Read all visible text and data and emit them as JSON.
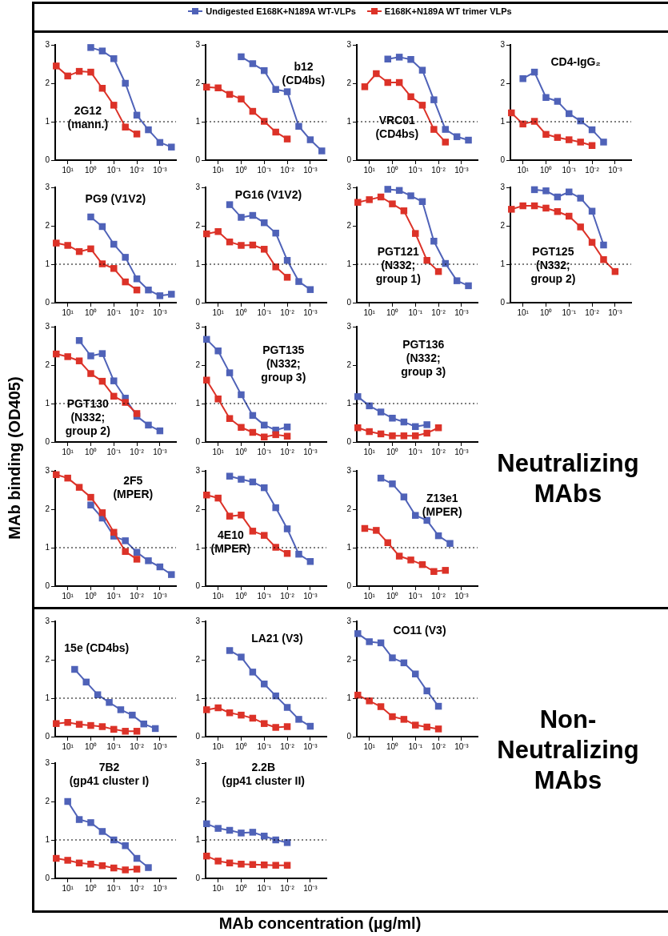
{
  "chart_data": [
    {
      "type": "line",
      "title": "2G12 (mann.)",
      "legend": "top",
      "log": "x",
      "marker": "square",
      "xlim": [
        35,
        0.0002
      ],
      "xticks": [
        {
          "value": 10,
          "label": "10¹"
        },
        {
          "value": 1,
          "label": "10⁰"
        },
        {
          "value": 0.1,
          "label": "10⁻¹"
        },
        {
          "value": 0.01,
          "label": "10⁻²"
        },
        {
          "value": 0.001,
          "label": "10⁻³"
        }
      ],
      "ylim": [
        0,
        3
      ],
      "yticks": [
        0,
        1,
        2,
        3
      ],
      "ref_lines": [
        {
          "axis": "y",
          "value": 1,
          "line_style": "dotted"
        }
      ],
      "series": [
        {
          "name": "Undigested E168K+N189A WT-VLPs",
          "color": "#4f62b8",
          "x": [
            1,
            0.316,
            0.1,
            0.0316,
            0.01,
            0.00316,
            0.001,
            0.000316
          ],
          "values": [
            2.93,
            2.84,
            2.64,
            2.0,
            1.17,
            0.79,
            0.46,
            0.34
          ]
        },
        {
          "name": "E168K+N189A WT trimer VLPs",
          "color": "#dc3228",
          "x": [
            31.6,
            10,
            3.16,
            1,
            0.316,
            0.1,
            0.0316,
            0.01
          ],
          "values": [
            2.45,
            2.19,
            2.31,
            2.29,
            1.87,
            1.43,
            0.86,
            0.68
          ]
        }
      ]
    },
    {
      "type": "line",
      "title": "b12 (CD4bs)",
      "log": "x",
      "marker": "square",
      "xlim": [
        35,
        0.0002
      ],
      "xticks": [
        {
          "value": 10,
          "label": "10¹"
        },
        {
          "value": 1,
          "label": "10⁰"
        },
        {
          "value": 0.1,
          "label": "10⁻¹"
        },
        {
          "value": 0.01,
          "label": "10⁻²"
        },
        {
          "value": 0.001,
          "label": "10⁻³"
        }
      ],
      "ylim": [
        0,
        3
      ],
      "yticks": [
        0,
        1,
        2,
        3
      ],
      "ref_lines": [
        {
          "axis": "y",
          "value": 1,
          "line_style": "dotted"
        }
      ],
      "series": [
        {
          "color": "#4f62b8",
          "x": [
            1,
            0.316,
            0.1,
            0.0316,
            0.01,
            0.00316,
            0.001,
            0.000316
          ],
          "values": [
            2.69,
            2.51,
            2.33,
            1.84,
            1.78,
            0.88,
            0.53,
            0.24
          ]
        },
        {
          "color": "#dc3228",
          "x": [
            31.6,
            10,
            3.16,
            1,
            0.316,
            0.1,
            0.0316,
            0.01
          ],
          "values": [
            1.9,
            1.88,
            1.71,
            1.59,
            1.27,
            1.01,
            0.73,
            0.55
          ]
        }
      ]
    },
    {
      "type": "line",
      "title": "VRC01 (CD4bs)",
      "log": "x",
      "marker": "square",
      "xlim": [
        35,
        0.0002
      ],
      "xticks": [
        {
          "value": 10,
          "label": "10¹"
        },
        {
          "value": 1,
          "label": "10⁰"
        },
        {
          "value": 0.1,
          "label": "10⁻¹"
        },
        {
          "value": 0.01,
          "label": "10⁻²"
        },
        {
          "value": 0.001,
          "label": "10⁻³"
        }
      ],
      "ylim": [
        0,
        3
      ],
      "yticks": [
        0,
        1,
        2,
        3
      ],
      "ref_lines": [
        {
          "axis": "y",
          "value": 1,
          "line_style": "dotted"
        }
      ],
      "series": [
        {
          "color": "#4f62b8",
          "x": [
            1.58,
            0.5,
            0.158,
            0.05,
            0.0158,
            0.005,
            0.00158,
            0.0005
          ],
          "values": [
            2.63,
            2.68,
            2.62,
            2.34,
            1.57,
            0.8,
            0.61,
            0.52
          ]
        },
        {
          "color": "#dc3228",
          "x": [
            15.8,
            5,
            1.58,
            0.5,
            0.158,
            0.05,
            0.0158,
            0.005
          ],
          "values": [
            1.91,
            2.25,
            2.02,
            2.02,
            1.65,
            1.43,
            0.8,
            0.47
          ]
        }
      ]
    },
    {
      "type": "line",
      "title": "CD4-IgG₂",
      "log": "x",
      "marker": "square",
      "xlim": [
        35,
        0.0002
      ],
      "xticks": [
        {
          "value": 10,
          "label": "10¹"
        },
        {
          "value": 1,
          "label": "10⁰"
        },
        {
          "value": 0.1,
          "label": "10⁻¹"
        },
        {
          "value": 0.01,
          "label": "10⁻²"
        },
        {
          "value": 0.001,
          "label": "10⁻³"
        }
      ],
      "ylim": [
        0,
        3
      ],
      "yticks": [
        0,
        1,
        2,
        3
      ],
      "ref_lines": [
        {
          "axis": "y",
          "value": 1,
          "line_style": "dotted"
        }
      ],
      "series": [
        {
          "color": "#4f62b8",
          "x": [
            10,
            3.16,
            1,
            0.316,
            0.1,
            0.0316,
            0.01,
            0.00316
          ],
          "values": [
            2.12,
            2.29,
            1.63,
            1.53,
            1.21,
            1.02,
            0.79,
            0.47
          ]
        },
        {
          "color": "#dc3228",
          "x": [
            31.6,
            10,
            3.16,
            1,
            0.316,
            0.1,
            0.0316,
            0.01
          ],
          "values": [
            1.23,
            0.94,
            1.01,
            0.67,
            0.59,
            0.53,
            0.47,
            0.38
          ]
        }
      ]
    },
    {
      "type": "line",
      "title": "PG9 (V1V2)",
      "log": "x",
      "marker": "square",
      "xlim": [
        35,
        0.0002
      ],
      "xticks": [
        {
          "value": 10,
          "label": "10¹"
        },
        {
          "value": 1,
          "label": "10⁰"
        },
        {
          "value": 0.1,
          "label": "10⁻¹"
        },
        {
          "value": 0.01,
          "label": "10⁻²"
        },
        {
          "value": 0.001,
          "label": "10⁻³"
        }
      ],
      "ylim": [
        0,
        3
      ],
      "yticks": [
        0,
        1,
        2,
        3
      ],
      "ref_lines": [
        {
          "axis": "y",
          "value": 1,
          "line_style": "dotted"
        }
      ],
      "series": [
        {
          "color": "#4f62b8",
          "x": [
            1,
            0.316,
            0.1,
            0.0316,
            0.01,
            0.00316,
            0.001,
            0.000316
          ],
          "values": [
            2.23,
            1.98,
            1.52,
            1.18,
            0.62,
            0.33,
            0.18,
            0.22
          ]
        },
        {
          "color": "#dc3228",
          "x": [
            31.6,
            10,
            3.16,
            1,
            0.316,
            0.1,
            0.0316,
            0.01
          ],
          "values": [
            1.55,
            1.49,
            1.33,
            1.4,
            1.01,
            0.89,
            0.54,
            0.33
          ]
        }
      ]
    },
    {
      "type": "line",
      "title": "PG16 (V1V2)",
      "log": "x",
      "marker": "square",
      "xlim": [
        35,
        0.0002
      ],
      "xticks": [
        {
          "value": 10,
          "label": "10¹"
        },
        {
          "value": 1,
          "label": "10⁰"
        },
        {
          "value": 0.1,
          "label": "10⁻¹"
        },
        {
          "value": 0.01,
          "label": "10⁻²"
        },
        {
          "value": 0.001,
          "label": "10⁻³"
        }
      ],
      "ylim": [
        0,
        3
      ],
      "yticks": [
        0,
        1,
        2,
        3
      ],
      "ref_lines": [
        {
          "axis": "y",
          "value": 1,
          "line_style": "dotted"
        }
      ],
      "series": [
        {
          "color": "#4f62b8",
          "x": [
            3.16,
            1,
            0.316,
            0.1,
            0.0316,
            0.01,
            0.00316,
            0.001
          ],
          "values": [
            2.55,
            2.22,
            2.27,
            2.08,
            1.81,
            1.1,
            0.55,
            0.34
          ]
        },
        {
          "color": "#dc3228",
          "x": [
            31.6,
            10,
            3.16,
            1,
            0.316,
            0.1,
            0.0316,
            0.01
          ],
          "values": [
            1.79,
            1.85,
            1.58,
            1.49,
            1.5,
            1.39,
            0.93,
            0.66
          ]
        }
      ]
    },
    {
      "type": "line",
      "title": "PGT121 (N332; group 1)",
      "log": "x",
      "marker": "square",
      "xlim": [
        35,
        0.0002
      ],
      "xticks": [
        {
          "value": 10,
          "label": "10¹"
        },
        {
          "value": 1,
          "label": "10⁰"
        },
        {
          "value": 0.1,
          "label": "10⁻¹"
        },
        {
          "value": 0.01,
          "label": "10⁻²"
        },
        {
          "value": 0.001,
          "label": "10⁻³"
        }
      ],
      "ylim": [
        0,
        3
      ],
      "yticks": [
        0,
        1,
        2,
        3
      ],
      "ref_lines": [
        {
          "axis": "y",
          "value": 1,
          "line_style": "dotted"
        }
      ],
      "series": [
        {
          "color": "#4f62b8",
          "x": [
            1.58,
            0.5,
            0.158,
            0.05,
            0.0158,
            0.005,
            0.00158,
            0.0005
          ],
          "values": [
            2.95,
            2.92,
            2.78,
            2.63,
            1.6,
            1.02,
            0.57,
            0.44
          ]
        },
        {
          "color": "#dc3228",
          "x": [
            31.6,
            10,
            3.16,
            1,
            0.316,
            0.1,
            0.0316,
            0.01
          ],
          "values": [
            2.61,
            2.68,
            2.75,
            2.57,
            2.39,
            1.8,
            1.1,
            0.81
          ]
        }
      ]
    },
    {
      "type": "line",
      "title": "PGT125 (N332; group 2)",
      "log": "x",
      "marker": "square",
      "xlim": [
        35,
        0.0002
      ],
      "xticks": [
        {
          "value": 10,
          "label": "10¹"
        },
        {
          "value": 1,
          "label": "10⁰"
        },
        {
          "value": 0.1,
          "label": "10⁻¹"
        },
        {
          "value": 0.01,
          "label": "10⁻²"
        },
        {
          "value": 0.001,
          "label": "10⁻³"
        }
      ],
      "ylim": [
        0,
        3
      ],
      "yticks": [
        0,
        1,
        2,
        3
      ],
      "ref_lines": [
        {
          "axis": "y",
          "value": 1,
          "line_style": "dotted"
        }
      ],
      "series": [
        {
          "color": "#4f62b8",
          "x": [
            3.16,
            1,
            0.316,
            0.1,
            0.0316,
            0.01,
            0.00316
          ],
          "values": [
            2.94,
            2.91,
            2.75,
            2.88,
            2.72,
            2.38,
            1.5
          ]
        },
        {
          "color": "#dc3228",
          "x": [
            31.6,
            10,
            3.16,
            1,
            0.316,
            0.1,
            0.0316,
            0.01,
            0.00316,
            0.001
          ],
          "values": [
            2.43,
            2.52,
            2.52,
            2.46,
            2.37,
            2.25,
            1.97,
            1.57,
            1.12,
            0.81
          ]
        }
      ]
    },
    {
      "type": "line",
      "title": "PGT130 (N332; group 2)",
      "ylabel": "MAb binding (OD405)",
      "log": "x",
      "marker": "square",
      "xlim": [
        35,
        0.0002
      ],
      "xticks": [
        {
          "value": 10,
          "label": "10¹"
        },
        {
          "value": 1,
          "label": "10⁰"
        },
        {
          "value": 0.1,
          "label": "10⁻¹"
        },
        {
          "value": 0.01,
          "label": "10⁻²"
        },
        {
          "value": 0.001,
          "label": "10⁻³"
        }
      ],
      "ylim": [
        0,
        3
      ],
      "yticks": [
        0,
        1,
        2,
        3
      ],
      "ref_lines": [
        {
          "axis": "y",
          "value": 1,
          "line_style": "dotted"
        }
      ],
      "series": [
        {
          "color": "#4f62b8",
          "x": [
            3.16,
            1,
            0.316,
            0.1,
            0.0316,
            0.01,
            0.00316,
            0.001
          ],
          "values": [
            2.64,
            2.24,
            2.3,
            1.59,
            1.14,
            0.67,
            0.44,
            0.29
          ]
        },
        {
          "color": "#dc3228",
          "x": [
            31.6,
            10,
            3.16,
            1,
            0.316,
            0.1,
            0.0316,
            0.01
          ],
          "values": [
            2.29,
            2.22,
            2.11,
            1.78,
            1.58,
            1.19,
            1.03,
            0.74
          ]
        }
      ]
    },
    {
      "type": "line",
      "title": "PGT135 (N332; group 3)",
      "log": "x",
      "marker": "square",
      "xlim": [
        35,
        0.0002
      ],
      "xticks": [
        {
          "value": 10,
          "label": "10¹"
        },
        {
          "value": 1,
          "label": "10⁰"
        },
        {
          "value": 0.1,
          "label": "10⁻¹"
        },
        {
          "value": 0.01,
          "label": "10⁻²"
        },
        {
          "value": 0.001,
          "label": "10⁻³"
        }
      ],
      "ylim": [
        0,
        3
      ],
      "yticks": [
        0,
        1,
        2,
        3
      ],
      "ref_lines": [
        {
          "axis": "y",
          "value": 1,
          "line_style": "dotted"
        }
      ],
      "series": [
        {
          "color": "#4f62b8",
          "x": [
            31.6,
            10,
            3.16,
            1,
            0.316,
            0.1,
            0.0316,
            0.01
          ],
          "values": [
            2.67,
            2.37,
            1.8,
            1.23,
            0.69,
            0.44,
            0.31,
            0.39
          ]
        },
        {
          "color": "#dc3228",
          "x": [
            31.6,
            10,
            3.16,
            1,
            0.316,
            0.1,
            0.0316,
            0.01
          ],
          "values": [
            1.61,
            1.12,
            0.61,
            0.38,
            0.25,
            0.13,
            0.19,
            0.15
          ]
        }
      ]
    },
    {
      "type": "line",
      "title": "PGT136 (N332; group 3)",
      "annotations": [
        "Neutralizing MAbs"
      ],
      "log": "x",
      "marker": "square",
      "xlim": [
        35,
        0.0002
      ],
      "xticks": [
        {
          "value": 10,
          "label": "10¹"
        },
        {
          "value": 1,
          "label": "10⁰"
        },
        {
          "value": 0.1,
          "label": "10⁻¹"
        },
        {
          "value": 0.01,
          "label": "10⁻²"
        },
        {
          "value": 0.001,
          "label": "10⁻³"
        }
      ],
      "ylim": [
        0,
        3
      ],
      "yticks": [
        0,
        1,
        2,
        3
      ],
      "ref_lines": [
        {
          "axis": "y",
          "value": 1,
          "line_style": "dotted"
        }
      ],
      "series": [
        {
          "color": "#4f62b8",
          "x": [
            31.6,
            10,
            3.16,
            1,
            0.316,
            0.1,
            0.0316
          ],
          "values": [
            1.18,
            0.94,
            0.78,
            0.62,
            0.52,
            0.4,
            0.45
          ]
        },
        {
          "color": "#dc3228",
          "x": [
            31.6,
            10,
            3.16,
            1,
            0.316,
            0.1,
            0.0316,
            0.01
          ],
          "values": [
            0.37,
            0.27,
            0.21,
            0.16,
            0.16,
            0.16,
            0.23,
            0.37
          ]
        }
      ]
    },
    {
      "type": "line",
      "title": "2F5 (MPER)",
      "log": "x",
      "marker": "square",
      "xlim": [
        35,
        0.0002
      ],
      "xticks": [
        {
          "value": 10,
          "label": "10¹"
        },
        {
          "value": 1,
          "label": "10⁰"
        },
        {
          "value": 0.1,
          "label": "10⁻¹"
        },
        {
          "value": 0.01,
          "label": "10⁻²"
        },
        {
          "value": 0.001,
          "label": "10⁻³"
        }
      ],
      "ylim": [
        0,
        3
      ],
      "yticks": [
        0,
        1,
        2,
        3
      ],
      "ref_lines": [
        {
          "axis": "y",
          "value": 1,
          "line_style": "dotted"
        }
      ],
      "series": [
        {
          "color": "#4f62b8",
          "x": [
            1,
            0.316,
            0.1,
            0.0316,
            0.01,
            0.00316,
            0.001,
            0.000316
          ],
          "values": [
            2.11,
            1.77,
            1.3,
            1.18,
            0.88,
            0.66,
            0.5,
            0.3
          ]
        },
        {
          "color": "#dc3228",
          "x": [
            31.6,
            10,
            3.16,
            1,
            0.316,
            0.1,
            0.0316,
            0.01
          ],
          "values": [
            2.9,
            2.81,
            2.57,
            2.31,
            1.91,
            1.4,
            0.9,
            0.7
          ]
        }
      ]
    },
    {
      "type": "line",
      "title": "4E10 (MPER)",
      "log": "x",
      "marker": "square",
      "xlim": [
        35,
        0.0002
      ],
      "xticks": [
        {
          "value": 10,
          "label": "10¹"
        },
        {
          "value": 1,
          "label": "10⁰"
        },
        {
          "value": 0.1,
          "label": "10⁻¹"
        },
        {
          "value": 0.01,
          "label": "10⁻²"
        },
        {
          "value": 0.001,
          "label": "10⁻³"
        }
      ],
      "ylim": [
        0,
        3
      ],
      "yticks": [
        0,
        1,
        2,
        3
      ],
      "ref_lines": [
        {
          "axis": "y",
          "value": 1,
          "line_style": "dotted"
        }
      ],
      "series": [
        {
          "color": "#4f62b8",
          "x": [
            3.16,
            1,
            0.316,
            0.1,
            0.0316,
            0.01,
            0.00316,
            0.001
          ],
          "values": [
            2.86,
            2.78,
            2.71,
            2.56,
            2.04,
            1.49,
            0.83,
            0.64
          ]
        },
        {
          "color": "#dc3228",
          "x": [
            31.6,
            10,
            3.16,
            1,
            0.316,
            0.1,
            0.0316,
            0.01
          ],
          "values": [
            2.37,
            2.29,
            1.82,
            1.85,
            1.43,
            1.32,
            1.01,
            0.85
          ]
        }
      ]
    },
    {
      "type": "line",
      "title": "Z13e1 (MPER)",
      "log": "x",
      "marker": "square",
      "xlim": [
        35,
        0.0002
      ],
      "xticks": [
        {
          "value": 10,
          "label": "10¹"
        },
        {
          "value": 1,
          "label": "10⁰"
        },
        {
          "value": 0.1,
          "label": "10⁻¹"
        },
        {
          "value": 0.01,
          "label": "10⁻²"
        },
        {
          "value": 0.001,
          "label": "10⁻³"
        }
      ],
      "ylim": [
        0,
        3
      ],
      "yticks": [
        0,
        1,
        2,
        3
      ],
      "ref_lines": [
        {
          "axis": "y",
          "value": 1,
          "line_style": "dotted"
        }
      ],
      "series": [
        {
          "color": "#4f62b8",
          "x": [
            3.16,
            1,
            0.316,
            0.1,
            0.0316,
            0.01,
            0.00316
          ],
          "values": [
            2.81,
            2.66,
            2.32,
            1.84,
            1.71,
            1.31,
            1.11
          ]
        },
        {
          "color": "#dc3228",
          "x": [
            15.8,
            5,
            1.58,
            0.5,
            0.158,
            0.05,
            0.0158,
            0.005
          ],
          "values": [
            1.5,
            1.45,
            1.13,
            0.78,
            0.68,
            0.56,
            0.38,
            0.41
          ]
        }
      ]
    },
    {
      "type": "line",
      "title": "15e (CD4bs)",
      "log": "x",
      "marker": "square",
      "xlim": [
        35,
        0.0002
      ],
      "xticks": [
        {
          "value": 10,
          "label": "10¹"
        },
        {
          "value": 1,
          "label": "10⁰"
        },
        {
          "value": 0.1,
          "label": "10⁻¹"
        },
        {
          "value": 0.01,
          "label": "10⁻²"
        },
        {
          "value": 0.001,
          "label": "10⁻³"
        }
      ],
      "ylim": [
        0,
        3
      ],
      "yticks": [
        0,
        1,
        2,
        3
      ],
      "ref_lines": [
        {
          "axis": "y",
          "value": 1,
          "line_style": "dotted"
        }
      ],
      "series": [
        {
          "color": "#4f62b8",
          "x": [
            5,
            1.58,
            0.5,
            0.158,
            0.05,
            0.0158,
            0.005,
            0.00158
          ],
          "values": [
            1.75,
            1.42,
            1.09,
            0.89,
            0.7,
            0.56,
            0.33,
            0.21
          ]
        },
        {
          "color": "#dc3228",
          "x": [
            31.6,
            10,
            3.16,
            1,
            0.316,
            0.1,
            0.0316,
            0.01
          ],
          "values": [
            0.34,
            0.37,
            0.32,
            0.29,
            0.26,
            0.19,
            0.14,
            0.14
          ]
        }
      ]
    },
    {
      "type": "line",
      "title": "LA21 (V3)",
      "log": "x",
      "marker": "square",
      "xlim": [
        35,
        0.0002
      ],
      "xticks": [
        {
          "value": 10,
          "label": "10¹"
        },
        {
          "value": 1,
          "label": "10⁰"
        },
        {
          "value": 0.1,
          "label": "10⁻¹"
        },
        {
          "value": 0.01,
          "label": "10⁻²"
        },
        {
          "value": 0.001,
          "label": "10⁻³"
        }
      ],
      "ylim": [
        0,
        3
      ],
      "yticks": [
        0,
        1,
        2,
        3
      ],
      "ref_lines": [
        {
          "axis": "y",
          "value": 1,
          "line_style": "dotted"
        }
      ],
      "series": [
        {
          "color": "#4f62b8",
          "x": [
            3.16,
            1,
            0.316,
            0.1,
            0.0316,
            0.01,
            0.00316,
            0.001
          ],
          "values": [
            2.24,
            2.07,
            1.68,
            1.37,
            1.06,
            0.76,
            0.45,
            0.27
          ]
        },
        {
          "color": "#dc3228",
          "x": [
            31.6,
            10,
            3.16,
            1,
            0.316,
            0.1,
            0.0316,
            0.01
          ],
          "values": [
            0.7,
            0.75,
            0.62,
            0.56,
            0.48,
            0.34,
            0.24,
            0.26
          ]
        }
      ]
    },
    {
      "type": "line",
      "title": "CO11 (V3)",
      "annotations": [
        "Non-Neutralizing MAbs"
      ],
      "log": "x",
      "marker": "square",
      "xlim": [
        35,
        0.0002
      ],
      "xticks": [
        {
          "value": 10,
          "label": "10¹"
        },
        {
          "value": 1,
          "label": "10⁰"
        },
        {
          "value": 0.1,
          "label": "10⁻¹"
        },
        {
          "value": 0.01,
          "label": "10⁻²"
        },
        {
          "value": 0.001,
          "label": "10⁻³"
        }
      ],
      "ylim": [
        0,
        3
      ],
      "yticks": [
        0,
        1,
        2,
        3
      ],
      "ref_lines": [
        {
          "axis": "y",
          "value": 1,
          "line_style": "dotted"
        }
      ],
      "series": [
        {
          "color": "#4f62b8",
          "x": [
            31.6,
            10,
            3.16,
            1,
            0.316,
            0.1,
            0.0316,
            0.01
          ],
          "values": [
            2.68,
            2.47,
            2.44,
            2.05,
            1.92,
            1.63,
            1.19,
            0.79
          ]
        },
        {
          "color": "#dc3228",
          "x": [
            31.6,
            10,
            3.16,
            1,
            0.316,
            0.1,
            0.0316,
            0.01
          ],
          "values": [
            1.08,
            0.93,
            0.78,
            0.52,
            0.45,
            0.3,
            0.25,
            0.2
          ]
        }
      ]
    },
    {
      "type": "line",
      "title": "7B2 (gp41 cluster I)",
      "log": "x",
      "marker": "square",
      "xlim": [
        35,
        0.0002
      ],
      "xticks": [
        {
          "value": 10,
          "label": "10¹"
        },
        {
          "value": 1,
          "label": "10⁰"
        },
        {
          "value": 0.1,
          "label": "10⁻¹"
        },
        {
          "value": 0.01,
          "label": "10⁻²"
        },
        {
          "value": 0.001,
          "label": "10⁻³"
        }
      ],
      "ylim": [
        0,
        3
      ],
      "yticks": [
        0,
        1,
        2,
        3
      ],
      "ref_lines": [
        {
          "axis": "y",
          "value": 1,
          "line_style": "dotted"
        }
      ],
      "series": [
        {
          "color": "#4f62b8",
          "x": [
            10,
            3.16,
            1,
            0.316,
            0.1,
            0.0316,
            0.01,
            0.00316
          ],
          "values": [
            2.0,
            1.53,
            1.45,
            1.22,
            1.0,
            0.85,
            0.52,
            0.28
          ]
        },
        {
          "color": "#dc3228",
          "x": [
            31.6,
            10,
            3.16,
            1,
            0.316,
            0.1,
            0.0316,
            0.01
          ],
          "values": [
            0.52,
            0.47,
            0.4,
            0.37,
            0.33,
            0.27,
            0.22,
            0.24
          ]
        }
      ]
    },
    {
      "type": "line",
      "title": "2.2B (gp41 cluster II)",
      "xlabel": "MAb concentration (µg/ml)",
      "log": "x",
      "marker": "square",
      "xlim": [
        35,
        0.0002
      ],
      "xticks": [
        {
          "value": 10,
          "label": "10¹"
        },
        {
          "value": 1,
          "label": "10⁰"
        },
        {
          "value": 0.1,
          "label": "10⁻¹"
        },
        {
          "value": 0.01,
          "label": "10⁻²"
        },
        {
          "value": 0.001,
          "label": "10⁻³"
        }
      ],
      "ylim": [
        0,
        3
      ],
      "yticks": [
        0,
        1,
        2,
        3
      ],
      "ref_lines": [
        {
          "axis": "y",
          "value": 1,
          "line_style": "dotted"
        }
      ],
      "series": [
        {
          "color": "#4f62b8",
          "x": [
            31.6,
            10,
            3.16,
            1,
            0.316,
            0.1,
            0.0316,
            0.01
          ],
          "values": [
            1.42,
            1.3,
            1.25,
            1.18,
            1.2,
            1.1,
            1.0,
            0.93
          ]
        },
        {
          "color": "#dc3228",
          "x": [
            31.6,
            10,
            3.16,
            1,
            0.316,
            0.1,
            0.0316,
            0.01
          ],
          "values": [
            0.58,
            0.45,
            0.4,
            0.37,
            0.36,
            0.35,
            0.34,
            0.34
          ]
        }
      ]
    }
  ]
}
